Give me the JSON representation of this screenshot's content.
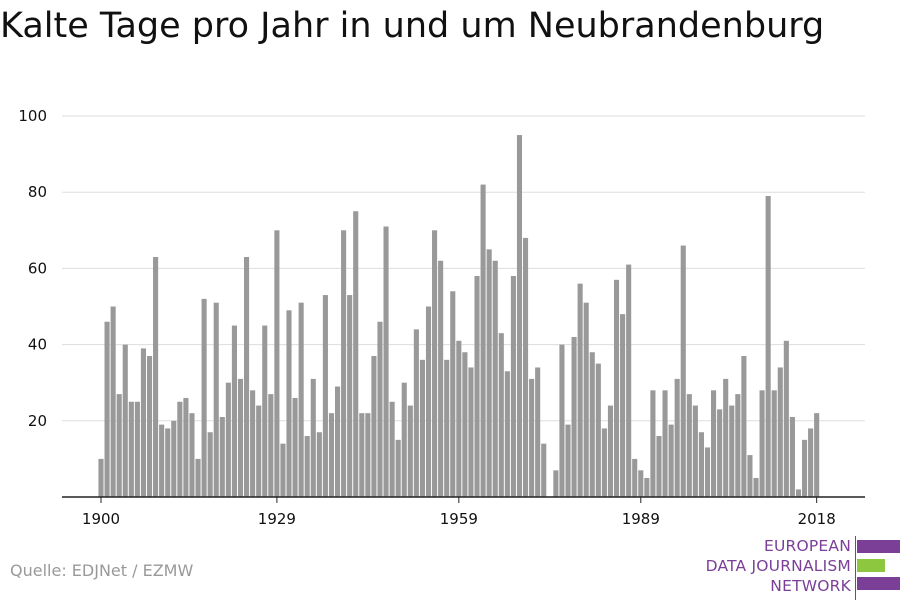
{
  "chart_data": {
    "type": "bar",
    "title": "Kalte Tage pro Jahr in und um Neubrandenburg",
    "xlabel": "",
    "ylabel": "",
    "x": [
      1900,
      1901,
      1902,
      1903,
      1904,
      1905,
      1906,
      1907,
      1908,
      1909,
      1910,
      1911,
      1912,
      1913,
      1914,
      1915,
      1916,
      1917,
      1918,
      1919,
      1920,
      1921,
      1922,
      1923,
      1924,
      1925,
      1926,
      1927,
      1928,
      1929,
      1930,
      1931,
      1932,
      1933,
      1934,
      1935,
      1936,
      1937,
      1938,
      1939,
      1940,
      1941,
      1942,
      1943,
      1944,
      1945,
      1946,
      1947,
      1948,
      1949,
      1950,
      1951,
      1952,
      1953,
      1954,
      1955,
      1956,
      1957,
      1958,
      1959,
      1960,
      1961,
      1962,
      1963,
      1964,
      1965,
      1966,
      1967,
      1968,
      1969,
      1970,
      1971,
      1972,
      1973,
      1974,
      1975,
      1976,
      1977,
      1978,
      1979,
      1980,
      1981,
      1982,
      1983,
      1984,
      1985,
      1986,
      1987,
      1988,
      1989,
      1990,
      1991,
      1992,
      1993,
      1994,
      1995,
      1996,
      1997,
      1998,
      1999,
      2000,
      2001,
      2002,
      2003,
      2004,
      2005,
      2006,
      2007,
      2008,
      2009,
      2010,
      2011,
      2012,
      2013,
      2014,
      2015,
      2016,
      2017,
      2018
    ],
    "values": [
      10,
      46,
      50,
      27,
      40,
      25,
      25,
      39,
      37,
      63,
      19,
      18,
      20,
      25,
      26,
      22,
      10,
      52,
      17,
      51,
      21,
      30,
      45,
      31,
      63,
      28,
      24,
      45,
      27,
      70,
      14,
      49,
      26,
      51,
      16,
      31,
      17,
      53,
      22,
      29,
      70,
      53,
      75,
      22,
      22,
      37,
      46,
      71,
      25,
      15,
      30,
      24,
      44,
      36,
      50,
      70,
      62,
      36,
      54,
      41,
      38,
      34,
      58,
      82,
      65,
      62,
      43,
      33,
      58,
      95,
      68,
      31,
      34,
      14,
      0,
      7,
      40,
      19,
      42,
      56,
      51,
      38,
      35,
      18,
      24,
      57,
      48,
      61,
      10,
      7,
      5,
      28,
      16,
      28,
      19,
      31,
      66,
      27,
      24,
      17,
      13,
      28,
      23,
      31,
      24,
      27,
      37,
      11,
      5,
      28,
      79,
      28,
      34,
      41,
      21,
      2,
      15,
      18,
      22
    ],
    "ylim": [
      0,
      100
    ],
    "yticks": [
      20,
      40,
      60,
      80,
      100
    ],
    "xticks": [
      1900,
      1929,
      1959,
      1989,
      2018
    ],
    "bar_color": "#999999",
    "grid": true,
    "legend": "none"
  },
  "source": "Quelle: EDJNet / EZMW",
  "logo": {
    "lines": [
      "EUROPEAN",
      "DATA JOURNALISM",
      "NETWORK"
    ],
    "text_color": "#7b3f97",
    "bar_colors": [
      "#7b3f97",
      "#8dc63f",
      "#7b3f97"
    ]
  }
}
